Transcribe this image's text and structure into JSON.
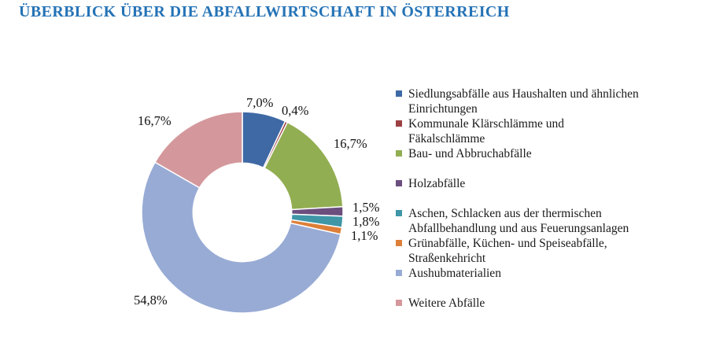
{
  "page": {
    "title": "ÜBERBLICK ÜBER DIE ABFALLWIRTSCHAFT IN ÖSTERREICH",
    "title_color": "#2573B6"
  },
  "chart_data": {
    "type": "pie",
    "subtype": "donut",
    "title": "",
    "categories": [
      "Siedlungsabfälle aus Haushalten und ähnlichen\nEinrichtungen",
      "Kommunale Klärschlämme und\nFäkalschlämme",
      "Bau- und Abbruchabfälle",
      "Holzabfälle",
      "Aschen, Schlacken aus der thermischen\nAbfallbehandlung und aus Feuerungsanlagen",
      "Grünabfälle, Küchen- und Speiseabfälle,\nStraßenkehricht",
      "Aushubmaterialien",
      "Weitere Abfälle"
    ],
    "values": [
      7.0,
      0.4,
      16.7,
      1.5,
      1.8,
      1.1,
      54.8,
      16.7
    ],
    "slice_labels": [
      "7,0%",
      "0,4%",
      "16,7%",
      "1,5%",
      "1,8%",
      "1,1%",
      "54,8%",
      "16,7%"
    ],
    "colors": [
      "#3F69A5",
      "#9C4044",
      "#92AE52",
      "#6B4E7E",
      "#3E96A7",
      "#DD7F38",
      "#98ABD5",
      "#D4989C"
    ],
    "legend_position": "right",
    "start_angle_deg": 0,
    "direction": "clockwise",
    "hole_ratio": 0.49,
    "segment_border_color": "#ffffff"
  }
}
